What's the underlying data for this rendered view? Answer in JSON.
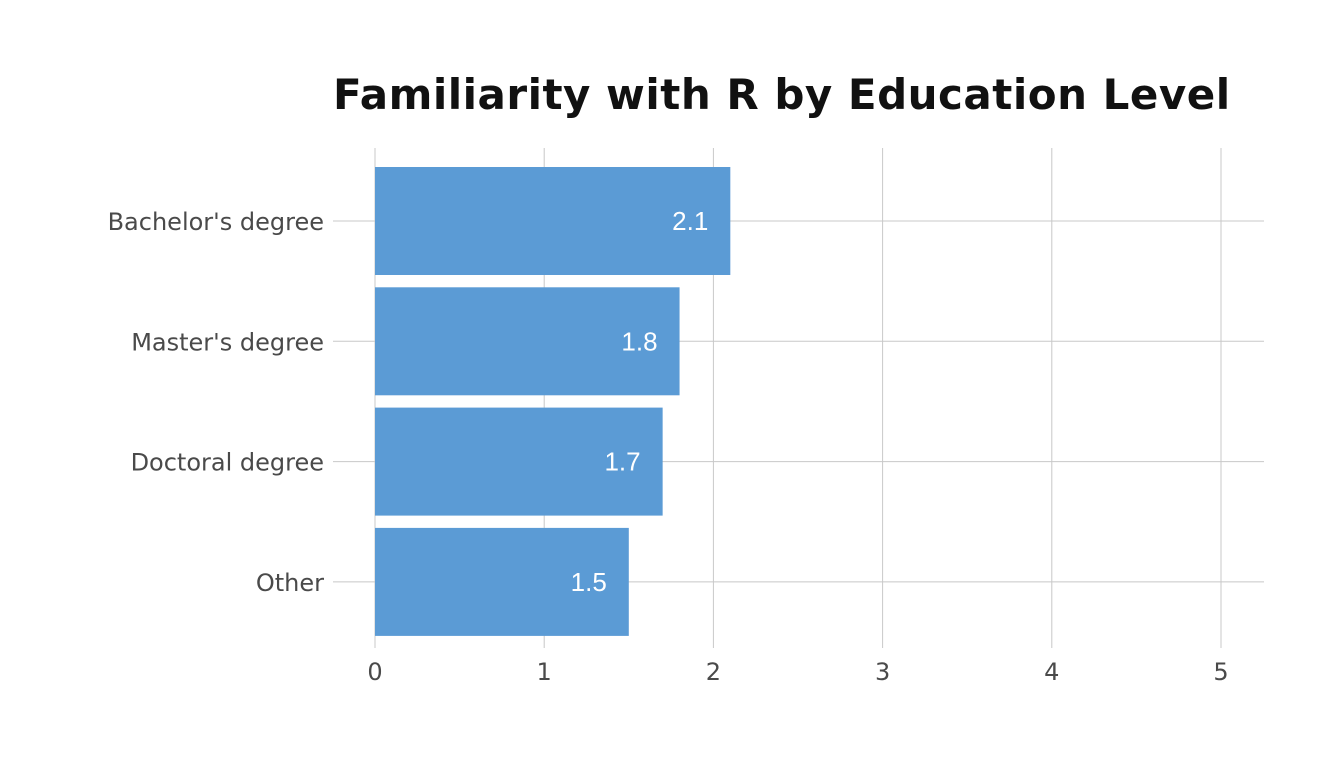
{
  "chart_data": {
    "type": "bar",
    "orientation": "horizontal",
    "title": "Familiarity with R by Education Level",
    "xlabel": "",
    "ylabel": "",
    "categories": [
      "Bachelor's degree",
      "Master's degree",
      "Doctoral degree",
      "Other"
    ],
    "values": [
      2.1,
      1.8,
      1.7,
      1.5
    ],
    "data_labels": [
      "2.1",
      "1.8",
      "1.7",
      "1.5"
    ],
    "xlim": [
      0,
      5
    ],
    "x_ticks": [
      0,
      1,
      2,
      3,
      4,
      5
    ],
    "x_tick_labels": [
      "0",
      "1",
      "2",
      "3",
      "4",
      "5"
    ],
    "grid": true,
    "legend": "none",
    "colors": {
      "bar": "#5b9bd5",
      "grid": "#c8c8c8",
      "title": "#111111",
      "tick_text": "#4a4a4a",
      "bar_label": "#ffffff"
    }
  }
}
